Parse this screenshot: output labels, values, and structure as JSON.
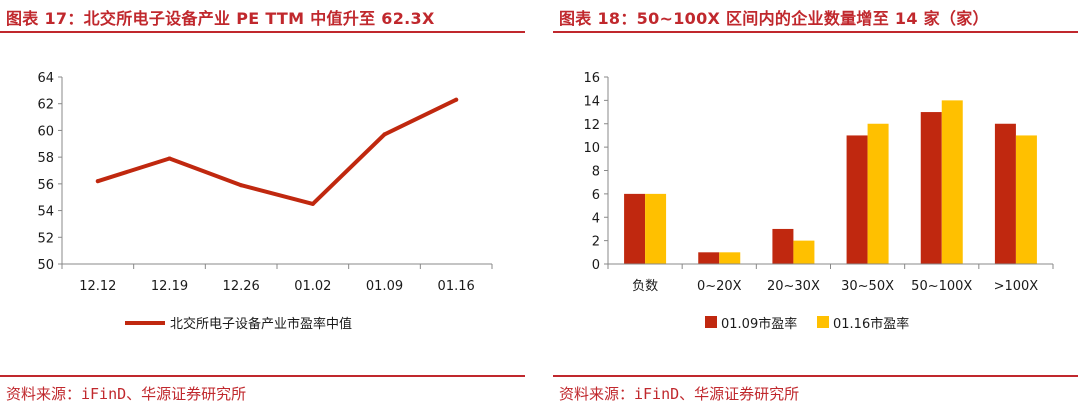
{
  "left": {
    "title": "图表 17：北交所电子设备产业 PE TTM 中值升至 62.3X",
    "source": "资料来源：iFinD、华源证券研究所"
  },
  "right": {
    "title": "图表 18：50~100X 区间内的企业数量增至 14 家（家）",
    "source": "资料来源：iFinD、华源证券研究所"
  },
  "colors": {
    "accent": "#c0282d",
    "series_red": "#c0280f",
    "series_yellow": "#ffc000"
  },
  "chart_data": [
    {
      "type": "line",
      "categories": [
        "12.12",
        "12.19",
        "12.26",
        "01.02",
        "01.09",
        "01.16"
      ],
      "series": [
        {
          "name": "北交所电子设备产业市盈率中值",
          "values": [
            56.2,
            57.9,
            55.9,
            54.5,
            59.7,
            62.3
          ]
        }
      ],
      "ylim": [
        50,
        64
      ],
      "yticks": [
        50,
        52,
        54,
        56,
        58,
        60,
        62,
        64
      ],
      "legend": "bottom",
      "grid": false
    },
    {
      "type": "bar",
      "categories": [
        "负数",
        "0~20X",
        "20~30X",
        "30~50X",
        "50~100X",
        ">100X"
      ],
      "series": [
        {
          "name": "01.09市盈率",
          "values": [
            6,
            1,
            3,
            11,
            13,
            12
          ]
        },
        {
          "name": "01.16市盈率",
          "values": [
            6,
            1,
            2,
            12,
            14,
            11
          ]
        }
      ],
      "ylim": [
        0,
        16
      ],
      "yticks": [
        0,
        2,
        4,
        6,
        8,
        10,
        12,
        14,
        16
      ],
      "legend": "bottom",
      "grid": false
    }
  ]
}
